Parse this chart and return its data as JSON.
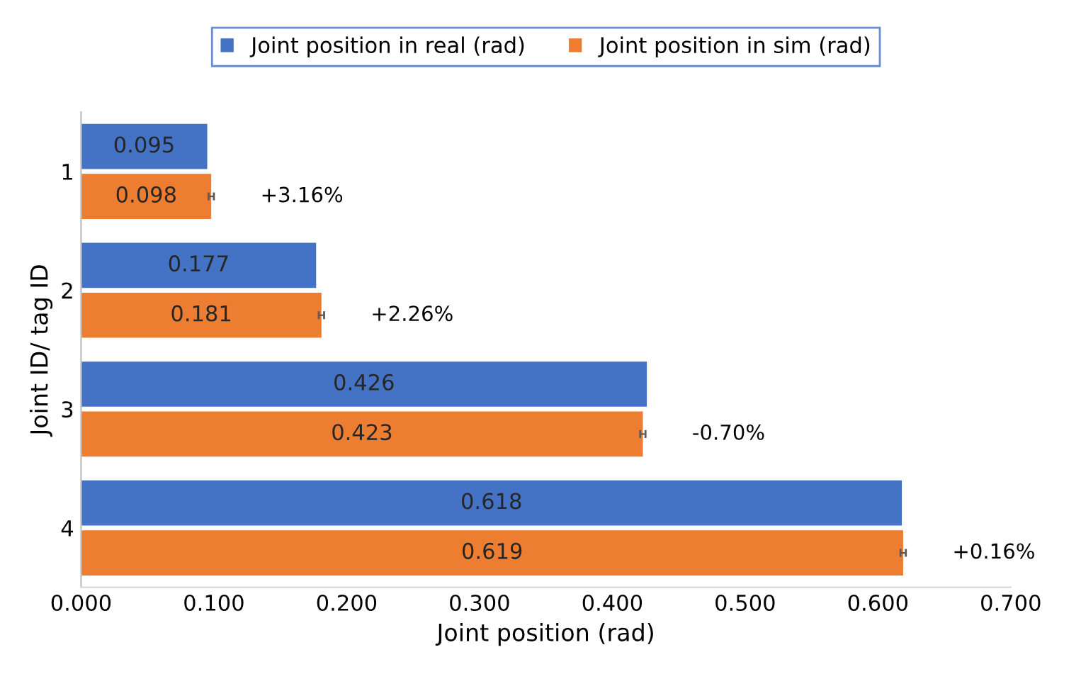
{
  "chart_data": {
    "type": "bar",
    "orientation": "horizontal",
    "xlabel": "Joint position (rad)",
    "ylabel": "Joint ID/ tag ID",
    "categories": [
      "1",
      "2",
      "3",
      "4"
    ],
    "series": [
      {
        "name": "Joint position in real (rad)",
        "color": "#4472c4",
        "values": [
          0.095,
          0.177,
          0.426,
          0.618
        ]
      },
      {
        "name": "Joint position in sim (rad)",
        "color": "#ed7d31",
        "values": [
          0.098,
          0.181,
          0.423,
          0.619
        ],
        "errors": [
          0.002,
          0.002,
          0.002,
          0.002
        ]
      }
    ],
    "xlim": [
      0,
      0.7
    ],
    "xticks": [
      {
        "value": 0,
        "label": "0.000"
      },
      {
        "value": 0.1,
        "label": "0.100"
      },
      {
        "value": 0.2,
        "label": "0.200"
      },
      {
        "value": 0.3,
        "label": "0.300"
      },
      {
        "value": 0.4,
        "label": "0.400"
      },
      {
        "value": 0.5,
        "label": "0.500"
      },
      {
        "value": 0.6,
        "label": "0.600"
      },
      {
        "value": 0.7,
        "label": "0.700"
      }
    ],
    "data_labels": true,
    "legend": "top",
    "grid": false,
    "annotations": [
      {
        "text": "+3.16%",
        "x": 0.098,
        "y": "1"
      },
      {
        "text": "+2.26%",
        "x": 0.181,
        "y": "2"
      },
      {
        "text": "-0.70%",
        "x": 0.423,
        "y": "3"
      },
      {
        "text": "+0.16%",
        "x": 0.619,
        "y": "4"
      }
    ]
  }
}
